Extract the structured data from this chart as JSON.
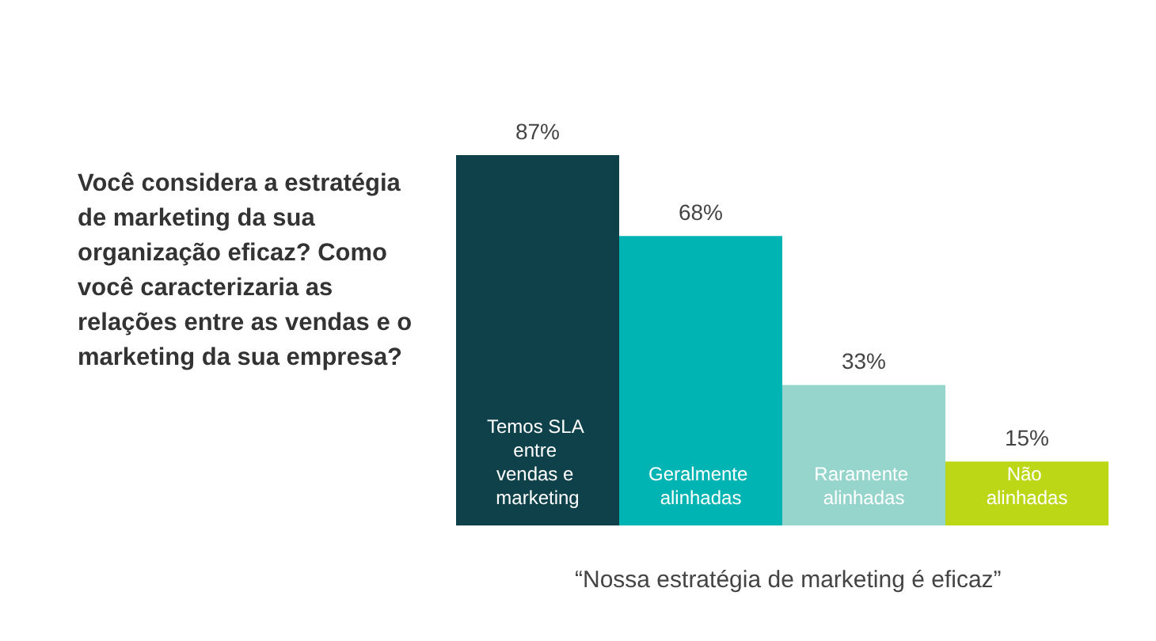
{
  "chart_data": {
    "type": "bar",
    "title": "Você considera a estratégia de marketing da sua organização eficaz? Como você caracterizaria as relações entre as vendas e o marketing da sua empresa?",
    "xlabel": "“Nossa estratégia de marketing é eficaz”",
    "categories": [
      "Temos SLA entre vendas e marketing",
      "Geralmente alinhadas",
      "Raramente alinhadas",
      "Não alinhadas"
    ],
    "values": [
      87,
      68,
      33,
      15
    ],
    "value_labels": [
      "87%",
      "68%",
      "33%",
      "15%"
    ],
    "colors": [
      "#0f414b",
      "#00b4b4",
      "#95d5cc",
      "#bcd715"
    ]
  }
}
